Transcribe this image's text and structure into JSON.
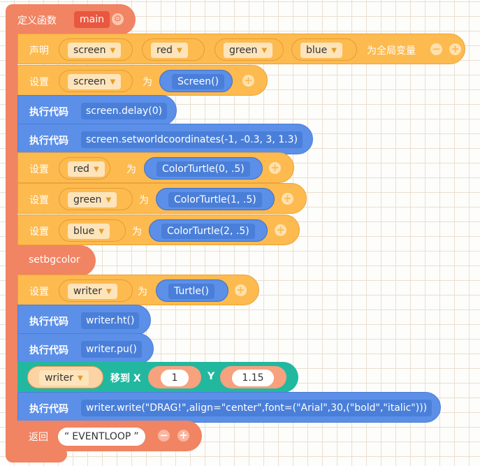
{
  "function": {
    "keyword": "定义函数",
    "name": "main",
    "gear_icon": "gear-icon"
  },
  "declare": {
    "keyword": "声明",
    "vars": [
      "screen",
      "red",
      "green",
      "blue"
    ],
    "suffix": "为全局变量"
  },
  "set_keyword": "设置",
  "as_keyword": "为",
  "exec_keyword": "执行代码",
  "set_screen": {
    "var": "screen",
    "value": "Screen()"
  },
  "exec_delay": {
    "code": "screen.delay(0)"
  },
  "exec_coords": {
    "code": "screen.setworldcoordinates(-1, -0.3, 3, 1.3)"
  },
  "set_red": {
    "var": "red",
    "value": "ColorTurtle(0, .5)"
  },
  "set_green": {
    "var": "green",
    "value": "ColorTurtle(1, .5)"
  },
  "set_blue": {
    "var": "blue",
    "value": "ColorTurtle(2, .5)"
  },
  "setbgcolor": {
    "label": "setbgcolor"
  },
  "set_writer": {
    "var": "writer",
    "value": "Turtle()"
  },
  "exec_ht": {
    "code": "writer.ht()"
  },
  "exec_pu": {
    "code": "writer.pu()"
  },
  "move": {
    "var": "writer",
    "label": "移到 X",
    "x": "1",
    "y_label": "Y",
    "y": "1.15"
  },
  "exec_write": {
    "code": "writer.write(\"DRAG!\",align=\"center\",font=(\"Arial\",30,(\"bold\",\"italic\")))"
  },
  "return": {
    "keyword": "返回",
    "value": "EVENTLOOP"
  }
}
